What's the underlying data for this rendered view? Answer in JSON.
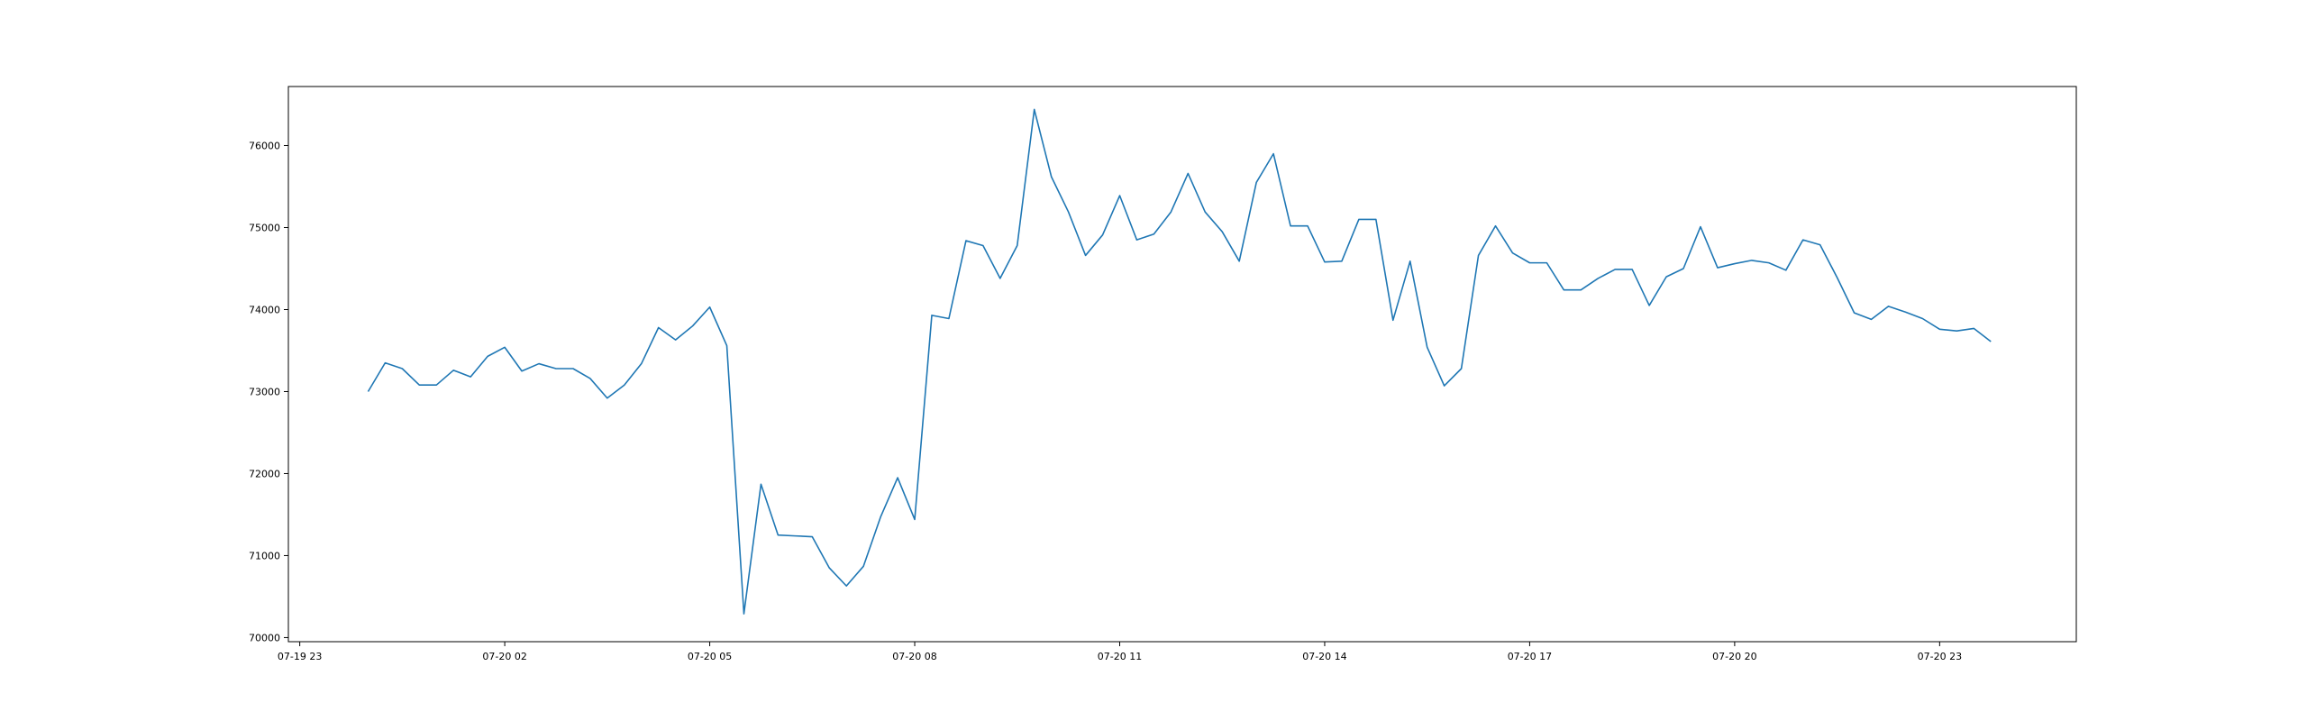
{
  "chart_data": {
    "type": "line",
    "title": "",
    "xlabel": "",
    "ylabel": "",
    "x_ticks": [
      "07-19 23",
      "07-20 02",
      "07-20 05",
      "07-20 08",
      "07-20 11",
      "07-20 14",
      "07-20 17",
      "07-20 20",
      "07-20 23"
    ],
    "y_ticks": [
      "70000",
      "71000",
      "72000",
      "73000",
      "74000",
      "75000",
      "76000"
    ],
    "xlim": [
      "2024-07-19 22:50",
      "2024-07-21 01:00"
    ],
    "ylim": [
      69950,
      76720
    ],
    "grid": false,
    "legend": "none",
    "series": [
      {
        "color": "#1f77b4",
        "x": [
          "2024-07-20 00:00",
          "2024-07-20 00:15",
          "2024-07-20 00:30",
          "2024-07-20 00:45",
          "2024-07-20 01:00",
          "2024-07-20 01:15",
          "2024-07-20 01:30",
          "2024-07-20 01:45",
          "2024-07-20 02:00",
          "2024-07-20 02:15",
          "2024-07-20 02:30",
          "2024-07-20 02:45",
          "2024-07-20 03:00",
          "2024-07-20 03:15",
          "2024-07-20 03:30",
          "2024-07-20 03:45",
          "2024-07-20 04:00",
          "2024-07-20 04:15",
          "2024-07-20 04:30",
          "2024-07-20 04:45",
          "2024-07-20 05:00",
          "2024-07-20 05:15",
          "2024-07-20 05:30",
          "2024-07-20 05:45",
          "2024-07-20 06:00",
          "2024-07-20 06:15",
          "2024-07-20 06:30",
          "2024-07-20 06:45",
          "2024-07-20 07:00",
          "2024-07-20 07:15",
          "2024-07-20 07:30",
          "2024-07-20 07:45",
          "2024-07-20 08:00",
          "2024-07-20 08:15",
          "2024-07-20 08:30",
          "2024-07-20 08:45",
          "2024-07-20 09:00",
          "2024-07-20 09:15",
          "2024-07-20 09:30",
          "2024-07-20 09:45",
          "2024-07-20 10:00",
          "2024-07-20 10:15",
          "2024-07-20 10:30",
          "2024-07-20 10:45",
          "2024-07-20 11:00",
          "2024-07-20 11:15",
          "2024-07-20 11:30",
          "2024-07-20 11:45",
          "2024-07-20 12:00",
          "2024-07-20 12:15",
          "2024-07-20 12:30",
          "2024-07-20 12:45",
          "2024-07-20 13:00",
          "2024-07-20 13:15",
          "2024-07-20 13:30",
          "2024-07-20 13:45",
          "2024-07-20 14:00",
          "2024-07-20 14:15",
          "2024-07-20 14:30",
          "2024-07-20 14:45",
          "2024-07-20 15:00",
          "2024-07-20 15:15",
          "2024-07-20 15:30",
          "2024-07-20 15:45",
          "2024-07-20 16:00",
          "2024-07-20 16:15",
          "2024-07-20 16:30",
          "2024-07-20 16:45",
          "2024-07-20 17:00",
          "2024-07-20 17:15",
          "2024-07-20 17:30",
          "2024-07-20 17:45",
          "2024-07-20 18:00",
          "2024-07-20 18:15",
          "2024-07-20 18:30",
          "2024-07-20 18:45",
          "2024-07-20 19:00",
          "2024-07-20 19:15",
          "2024-07-20 19:30",
          "2024-07-20 19:45",
          "2024-07-20 20:00",
          "2024-07-20 20:15",
          "2024-07-20 20:30",
          "2024-07-20 20:45",
          "2024-07-20 21:00",
          "2024-07-20 21:15",
          "2024-07-20 21:30",
          "2024-07-20 21:45",
          "2024-07-20 22:00",
          "2024-07-20 22:15",
          "2024-07-20 22:30",
          "2024-07-20 22:45",
          "2024-07-20 23:00",
          "2024-07-20 23:15",
          "2024-07-20 23:30",
          "2024-07-20 23:45"
        ],
        "y": [
          73000,
          73350,
          73280,
          73080,
          73080,
          73260,
          73180,
          73430,
          73540,
          73250,
          73340,
          73280,
          73280,
          73160,
          72920,
          73080,
          73340,
          73780,
          73630,
          73800,
          74030,
          73560,
          70290,
          71870,
          71250,
          71240,
          71230,
          70850,
          70630,
          70870,
          71470,
          71950,
          71440,
          73930,
          73890,
          74840,
          74780,
          74380,
          74780,
          76440,
          75620,
          75190,
          74660,
          74910,
          75390,
          74850,
          74920,
          75190,
          75660,
          75190,
          74950,
          74590,
          75550,
          75900,
          75020,
          75020,
          74580,
          74590,
          75100,
          75100,
          73870,
          74590,
          73540,
          73070,
          73280,
          74660,
          75020,
          74690,
          74570,
          74570,
          74240,
          74240,
          74380,
          74490,
          74490,
          74050,
          74400,
          74500,
          75010,
          74510,
          74560,
          74600,
          74570,
          74480,
          74850,
          74790,
          74390,
          73960,
          73880,
          74040,
          73970,
          73890,
          73760,
          73740,
          73770,
          73610
        ]
      }
    ]
  }
}
